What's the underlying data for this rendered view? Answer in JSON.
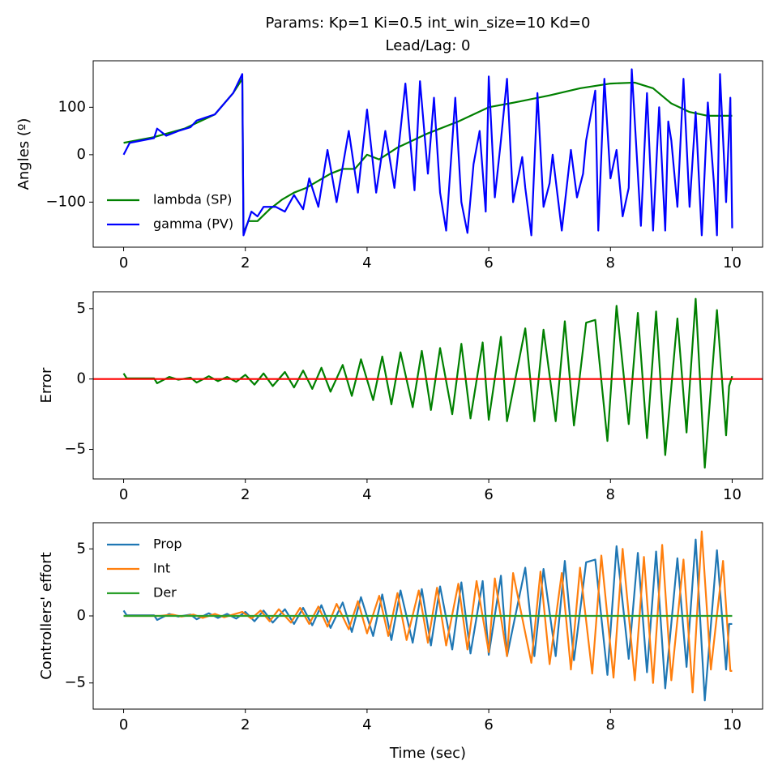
{
  "chart_data": [
    {
      "type": "line",
      "title": [
        "Params: Kp=1 Ki=0.5 int_win_size=10 Kd=0",
        "Lead/Lag: 0"
      ],
      "ylabel": "Angles (º)",
      "xlim": [
        -0.5,
        10.5
      ],
      "ylim": [
        -195,
        198
      ],
      "xticks": [
        0,
        2,
        4,
        6,
        8,
        10
      ],
      "yticks": [
        {
          "value": -100,
          "label": "−100"
        },
        0,
        100
      ],
      "legend": "lower left",
      "series": [
        {
          "name": "lambda (SP)",
          "color": "#008000",
          "x": [
            0,
            0.5,
            1.0,
            1.5,
            1.8,
            1.95,
            1.97,
            2.05,
            2.2,
            2.4,
            2.6,
            2.8,
            3.0,
            3.2,
            3.4,
            3.6,
            3.8,
            4.0,
            4.2,
            4.5,
            5.0,
            5.5,
            6.0,
            6.5,
            7.0,
            7.5,
            8.0,
            8.4,
            8.7,
            9.0,
            9.3,
            9.6,
            10.0
          ],
          "values": [
            25,
            37,
            55,
            85,
            130,
            160,
            -165,
            -140,
            -140,
            -115,
            -95,
            -80,
            -70,
            -55,
            -40,
            -30,
            -30,
            0,
            -10,
            15,
            45,
            70,
            100,
            112,
            125,
            140,
            150,
            152,
            140,
            108,
            90,
            82,
            82
          ]
        },
        {
          "name": "gamma (PV)",
          "color": "#0000ff",
          "x": [
            0,
            0.1,
            0.5,
            0.55,
            0.7,
            0.9,
            1.1,
            1.2,
            1.5,
            1.8,
            1.95,
            1.97,
            2.1,
            2.2,
            2.3,
            2.5,
            2.65,
            2.8,
            2.95,
            3.05,
            3.2,
            3.35,
            3.5,
            3.7,
            3.85,
            4.0,
            4.15,
            4.3,
            4.45,
            4.63,
            4.78,
            4.87,
            5.0,
            5.1,
            5.2,
            5.3,
            5.45,
            5.55,
            5.65,
            5.75,
            5.85,
            5.95,
            6.0,
            6.1,
            6.2,
            6.3,
            6.4,
            6.55,
            6.6,
            6.7,
            6.8,
            6.9,
            7.0,
            7.05,
            7.2,
            7.35,
            7.45,
            7.55,
            7.6,
            7.75,
            7.8,
            7.9,
            8.0,
            8.1,
            8.2,
            8.3,
            8.35,
            8.5,
            8.6,
            8.7,
            8.8,
            8.9,
            8.95,
            9.0,
            9.1,
            9.2,
            9.3,
            9.4,
            9.5,
            9.6,
            9.7,
            9.75,
            9.8,
            9.9,
            9.97,
            10.0
          ],
          "values": [
            0,
            25,
            35,
            55,
            40,
            50,
            58,
            72,
            85,
            130,
            170,
            -170,
            -120,
            -130,
            -110,
            -110,
            -120,
            -85,
            -115,
            -50,
            -110,
            10,
            -100,
            50,
            -80,
            95,
            -80,
            50,
            -70,
            150,
            -75,
            155,
            -40,
            120,
            -80,
            -160,
            120,
            -100,
            -165,
            -20,
            50,
            -120,
            165,
            -90,
            30,
            160,
            -100,
            -5,
            -70,
            -170,
            130,
            -110,
            -60,
            0,
            -160,
            10,
            -90,
            -40,
            30,
            135,
            -160,
            160,
            -50,
            10,
            -130,
            -70,
            180,
            -150,
            130,
            -160,
            100,
            -160,
            70,
            30,
            -110,
            160,
            -110,
            90,
            -170,
            110,
            -60,
            -170,
            170,
            -100,
            120,
            -155
          ]
        }
      ]
    },
    {
      "type": "line",
      "ylabel": "Error",
      "xlim": [
        -0.5,
        10.5
      ],
      "ylim": [
        -7.1,
        6.2
      ],
      "xticks": [
        0,
        2,
        4,
        6,
        8,
        10
      ],
      "yticks": [
        {
          "value": -5,
          "label": "−5"
        },
        0,
        5
      ],
      "reference_line": {
        "value": 0,
        "color": "#ff0000"
      },
      "series": [
        {
          "color": "#008000",
          "x": [
            0,
            0.05,
            0.5,
            0.55,
            0.75,
            0.9,
            1.1,
            1.2,
            1.4,
            1.55,
            1.7,
            1.85,
            2.0,
            2.15,
            2.3,
            2.45,
            2.65,
            2.8,
            2.95,
            3.1,
            3.25,
            3.4,
            3.6,
            3.75,
            3.9,
            4.1,
            4.25,
            4.4,
            4.55,
            4.75,
            4.9,
            5.05,
            5.2,
            5.4,
            5.55,
            5.7,
            5.9,
            6.0,
            6.2,
            6.3,
            6.6,
            6.75,
            6.9,
            7.1,
            7.25,
            7.4,
            7.6,
            7.75,
            7.95,
            8.1,
            8.3,
            8.45,
            8.6,
            8.75,
            8.9,
            9.1,
            9.25,
            9.4,
            9.55,
            9.75,
            9.9,
            9.95,
            10.0
          ],
          "values": [
            0.4,
            0.05,
            0.05,
            -0.3,
            0.15,
            -0.05,
            0.1,
            -0.25,
            0.2,
            -0.15,
            0.15,
            -0.2,
            0.3,
            -0.4,
            0.4,
            -0.5,
            0.5,
            -0.6,
            0.6,
            -0.7,
            0.8,
            -0.9,
            1.0,
            -1.2,
            1.4,
            -1.5,
            1.6,
            -1.8,
            1.9,
            -2.0,
            2.0,
            -2.2,
            2.2,
            -2.5,
            2.5,
            -2.8,
            2.6,
            -2.9,
            3.0,
            -3.0,
            3.6,
            -3.0,
            3.5,
            -3.0,
            4.1,
            -3.3,
            4.0,
            4.2,
            -4.4,
            5.2,
            -3.2,
            4.7,
            -4.2,
            4.8,
            -5.4,
            4.3,
            -3.8,
            5.7,
            -6.3,
            4.9,
            -4.0,
            -0.5,
            0.2
          ]
        }
      ]
    },
    {
      "type": "line",
      "ylabel": "Controllers' effort",
      "xlabel": "Time (sec)",
      "xlim": [
        -0.5,
        10.5
      ],
      "ylim": [
        -6.95,
        6.95
      ],
      "xticks": [
        0,
        2,
        4,
        6,
        8,
        10
      ],
      "yticks": [
        {
          "value": -5,
          "label": "−5"
        },
        0,
        5
      ],
      "legend": "upper left",
      "series": [
        {
          "name": "Prop",
          "color": "#1f77b4",
          "x": [
            0,
            0.05,
            0.5,
            0.55,
            0.75,
            0.9,
            1.1,
            1.2,
            1.4,
            1.55,
            1.7,
            1.85,
            2.0,
            2.15,
            2.3,
            2.45,
            2.65,
            2.8,
            2.95,
            3.1,
            3.25,
            3.4,
            3.6,
            3.75,
            3.9,
            4.1,
            4.25,
            4.4,
            4.55,
            4.75,
            4.9,
            5.05,
            5.2,
            5.4,
            5.55,
            5.7,
            5.9,
            6.0,
            6.2,
            6.3,
            6.6,
            6.75,
            6.9,
            7.1,
            7.25,
            7.4,
            7.6,
            7.75,
            7.95,
            8.1,
            8.3,
            8.45,
            8.6,
            8.75,
            8.9,
            9.1,
            9.25,
            9.4,
            9.55,
            9.75,
            9.9,
            9.95,
            10.0
          ],
          "values": [
            0.4,
            0.05,
            0.05,
            -0.3,
            0.15,
            -0.05,
            0.1,
            -0.25,
            0.2,
            -0.15,
            0.15,
            -0.2,
            0.3,
            -0.4,
            0.4,
            -0.5,
            0.5,
            -0.6,
            0.6,
            -0.7,
            0.8,
            -0.9,
            1.0,
            -1.2,
            1.4,
            -1.5,
            1.6,
            -1.8,
            1.9,
            -2.0,
            2.0,
            -2.2,
            2.2,
            -2.5,
            2.5,
            -2.8,
            2.6,
            -2.9,
            3.0,
            -3.0,
            3.6,
            -3.0,
            3.5,
            -3.0,
            4.1,
            -3.3,
            4.0,
            4.2,
            -4.4,
            5.2,
            -3.2,
            4.7,
            -4.2,
            4.8,
            -5.4,
            4.3,
            -3.8,
            5.7,
            -6.3,
            4.9,
            -4.0,
            -0.6,
            -0.6
          ]
        },
        {
          "name": "Int",
          "color": "#ff7f0e",
          "x": [
            0,
            0.6,
            0.8,
            0.95,
            1.15,
            1.3,
            1.5,
            1.65,
            1.8,
            1.95,
            2.1,
            2.25,
            2.4,
            2.55,
            2.75,
            2.9,
            3.05,
            3.2,
            3.35,
            3.5,
            3.7,
            3.85,
            4.0,
            4.2,
            4.35,
            4.5,
            4.65,
            4.85,
            5.0,
            5.15,
            5.3,
            5.5,
            5.65,
            5.8,
            6.0,
            6.1,
            6.3,
            6.4,
            6.7,
            6.85,
            7.0,
            7.2,
            7.35,
            7.5,
            7.7,
            7.85,
            8.05,
            8.2,
            8.4,
            8.55,
            8.7,
            8.85,
            9.0,
            9.2,
            9.35,
            9.5,
            9.65,
            9.85,
            9.97,
            10.0
          ],
          "values": [
            0,
            0,
            0.1,
            -0.05,
            0.1,
            -0.15,
            0.15,
            -0.1,
            0.1,
            0.3,
            -0.2,
            0.4,
            -0.4,
            0.5,
            -0.5,
            0.6,
            -0.6,
            0.7,
            -0.8,
            0.9,
            -1.0,
            1.1,
            -1.3,
            1.5,
            -1.5,
            1.7,
            -1.8,
            1.9,
            -2.0,
            2.1,
            -2.2,
            2.4,
            -2.5,
            2.6,
            -2.7,
            2.8,
            -3.0,
            3.2,
            -3.5,
            3.3,
            -3.6,
            3.2,
            -4.0,
            3.6,
            -4.3,
            4.5,
            -4.6,
            5.0,
            -4.8,
            4.4,
            -5.0,
            5.3,
            -4.8,
            4.2,
            -5.7,
            6.3,
            -4.0,
            4.1,
            -4.1,
            -4.1
          ]
        },
        {
          "name": "Der",
          "color": "#2ca02c",
          "x": [
            0,
            10
          ],
          "values": [
            0,
            0
          ]
        }
      ]
    }
  ]
}
